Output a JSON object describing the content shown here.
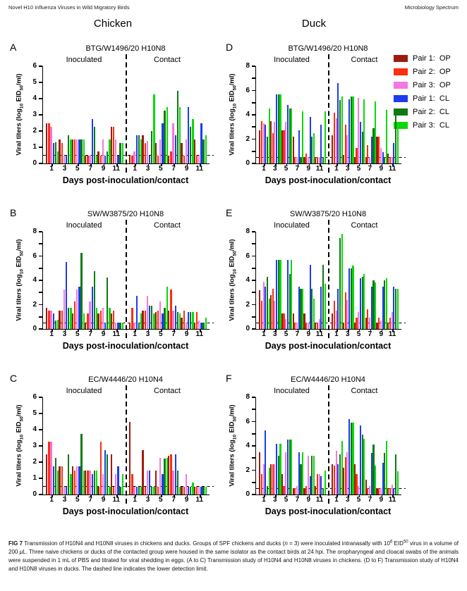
{
  "page": {
    "header_left": "Novel H10 Influenza Viruses in Wild Migratory Birds",
    "header_right": "Microbiology Spectrum",
    "column_titles": {
      "left": "Chicken",
      "right": "Duck"
    }
  },
  "legend": {
    "items": [
      {
        "label": "Pair 1:  OP",
        "color": "#9E1B10"
      },
      {
        "label": "Pair 2:  OP",
        "color": "#FB2E0D"
      },
      {
        "label": "Pair 3:  OP",
        "color": "#F478DE"
      },
      {
        "label": "Pair 1:  CL",
        "color": "#1D3CF2"
      },
      {
        "label": "Pair 2:  CL",
        "color": "#0D7A12"
      },
      {
        "label": "Pair 3:  CL",
        "color": "#0BD80B"
      }
    ]
  },
  "axes": {
    "y_label": {
      "pre": "Viral titers (log",
      "sub1": "10",
      "mid": " EID",
      "sub2": "50",
      "post": "/ml)"
    },
    "x_label": "Days post-inoculation/contact",
    "days": [
      1,
      3,
      5,
      7,
      9,
      11
    ],
    "detection_limit": 0.5
  },
  "chart_data": [
    {
      "type": "bar",
      "letter": "A",
      "title": "BTG/W1496/20 H10N8",
      "animal": "Chicken",
      "ymax": 6,
      "label_every": 1,
      "series": [
        "Pair 1: OP",
        "Pair 2: OP",
        "Pair 3: OP",
        "Pair 1: CL",
        "Pair 2: CL",
        "Pair 3: CL"
      ],
      "sections": [
        {
          "label": "Inoculated",
          "values": [
            [
              2.5,
              2.5,
              2.25,
              1.25,
              1.3,
              0.75
            ],
            [
              1.5,
              1.25,
              0.5,
              0.5,
              1.75,
              1.5
            ],
            [
              1.5,
              1.5,
              1.5,
              1.5,
              1.5,
              1.5
            ],
            [
              0.5,
              0.5,
              0.5,
              2.75,
              2.25,
              0.5
            ],
            [
              0.75,
              0.5,
              1.5,
              0.5,
              0.75,
              1.5
            ],
            [
              2.25,
              2.25,
              1.5,
              0.5,
              1.25,
              1.25
            ]
          ]
        },
        {
          "label": "Contact",
          "values": [
            [
              0.5,
              0.5,
              0.75,
              1.75,
              1.75,
              1.5
            ],
            [
              1.75,
              1.25,
              1.4,
              0.5,
              2.0,
              4.25
            ],
            [
              1.25,
              0.5,
              1.5,
              2.5,
              3.25,
              3.5
            ],
            [
              0.5,
              0.75,
              2.5,
              1.75,
              4.5,
              3.5
            ],
            [
              1.25,
              0.5,
              1.5,
              3.5,
              2.25,
              2.75
            ],
            [
              1.5,
              0.5,
              0.5,
              2.5,
              1.5,
              1.75
            ]
          ]
        }
      ]
    },
    {
      "type": "bar",
      "letter": "B",
      "title": "SW/W3875/20 H10N8",
      "animal": "Chicken",
      "ymax": 8,
      "label_every": 2,
      "series": [
        "Pair 1: OP",
        "Pair 2: OP",
        "Pair 3: OP",
        "Pair 1: CL",
        "Pair 2: CL",
        "Pair 3: CL"
      ],
      "sections": [
        {
          "label": "Inoculated",
          "values": [
            [
              1.75,
              1.5,
              1.5,
              1.25,
              0.7,
              0.75
            ],
            [
              1.5,
              1.5,
              3.25,
              5.5,
              1.75,
              1.75
            ],
            [
              1.25,
              2.25,
              3.25,
              3.5,
              6.25,
              1.25
            ],
            [
              0.5,
              1.25,
              2.25,
              3.5,
              4.75,
              1.75
            ],
            [
              1.25,
              1.5,
              1.75,
              0.5,
              4.25,
              1.75
            ],
            [
              1.25,
              1.5,
              0.5,
              0.5,
              0.5,
              0.5
            ]
          ]
        },
        {
          "label": "Contact",
          "values": [
            [
              0.5,
              1.75,
              0.5,
              2.75,
              0.5,
              1.25
            ],
            [
              1.5,
              1.5,
              2.75,
              1.9,
              1.9,
              1.25
            ],
            [
              1.4,
              1.5,
              2.25,
              1.25,
              1.75,
              3.5
            ],
            [
              1.5,
              3.25,
              1.5,
              1.9,
              1.4,
              1.25
            ],
            [
              0.9,
              1.5,
              0.5,
              1.4,
              1.4,
              1.4
            ],
            [
              0.5,
              1.4,
              0.7,
              0.5,
              0.5,
              0.9
            ]
          ]
        }
      ]
    },
    {
      "type": "bar",
      "letter": "C",
      "title": "EC/W4446/20 H10N4",
      "animal": "Chicken",
      "ymax": 6,
      "label_every": 1,
      "series": [
        "Pair 1: OP",
        "Pair 2: OP",
        "Pair 3: OP",
        "Pair 1: CL",
        "Pair 2: CL",
        "Pair 3: CL"
      ],
      "sections": [
        {
          "label": "Inoculated",
          "values": [
            [
              2.5,
              3.25,
              3.25,
              1.75,
              2.25,
              1.5
            ],
            [
              1.75,
              1.75,
              0.5,
              0.5,
              2.5,
              1.25
            ],
            [
              1.75,
              1.5,
              1.75,
              1.75,
              3.75,
              1.5
            ],
            [
              1.5,
              1.5,
              1.5,
              1.25,
              1.5,
              1.5
            ],
            [
              0.5,
              3.25,
              1.25,
              2.75,
              2.5,
              0.5
            ],
            [
              2.5,
              0.5,
              1.25,
              1.75,
              0.5,
              1.25
            ]
          ]
        },
        {
          "label": "Contact",
          "values": [
            [
              4.5,
              1.25,
              0.5,
              0.5,
              0.5,
              0.5
            ],
            [
              2.75,
              0.5,
              1.5,
              1.5,
              0.5,
              0.5
            ],
            [
              1.5,
              0.5,
              2.25,
              1.25,
              2.2,
              2.25
            ],
            [
              2.4,
              2.5,
              1.5,
              2.5,
              1.5,
              0.5
            ],
            [
              0.5,
              0.5,
              1.25,
              0.5,
              0.5,
              0.75
            ],
            [
              0.5,
              0.5,
              0.5,
              0.5,
              0.5,
              0.5
            ]
          ]
        }
      ]
    },
    {
      "type": "bar",
      "letter": "D",
      "title": "BTG/W1496/20 H10N8",
      "animal": "Duck",
      "ymax": 8,
      "label_every": 2,
      "series": [
        "Pair 1: OP",
        "Pair 2: OP",
        "Pair 3: OP",
        "Pair 1: CL",
        "Pair 2: CL",
        "Pair 3: CL"
      ],
      "sections": [
        {
          "label": "Inoculated",
          "values": [
            [
              2.7,
              3.5,
              3.3,
              3.2,
              2.2,
              4.5
            ],
            [
              3.5,
              2.5,
              3.4,
              5.7,
              5.7,
              5.7
            ],
            [
              2.7,
              2.7,
              3.4,
              4.8,
              4.5,
              4.5
            ],
            [
              2.2,
              0.5,
              0.5,
              2.7,
              0.5,
              4.3
            ],
            [
              0.5,
              0.8,
              0.5,
              3.8,
              2.2,
              2.5
            ],
            [
              0.5,
              0.5,
              0.5,
              3.2,
              0.5,
              4.3
            ]
          ]
        },
        {
          "label": "Contact",
          "values": [
            [
              2.3,
              4.2,
              3.7,
              6.6,
              5.2,
              5.5
            ],
            [
              0.7,
              3.2,
              2.3,
              5.3,
              5.5,
              5.5
            ],
            [
              0.5,
              1.3,
              5.4,
              3.4,
              2.6,
              5.3
            ],
            [
              0.5,
              1.5,
              0.5,
              2.2,
              2.9,
              5.1
            ],
            [
              2.2,
              2.2,
              1.3,
              0.9,
              0.5,
              4.4
            ],
            [
              0.8,
              0.5,
              0.5,
              1.7,
              4.4,
              2.9
            ]
          ]
        }
      ]
    },
    {
      "type": "bar",
      "letter": "E",
      "title": "SW/W3875/20 H10N8",
      "animal": "Duck",
      "ymax": 8,
      "label_every": 2,
      "series": [
        "Pair 1: OP",
        "Pair 2: OP",
        "Pair 3: OP",
        "Pair 1: CL",
        "Pair 2: CL",
        "Pair 3: CL"
      ],
      "sections": [
        {
          "label": "Inoculated",
          "values": [
            [
              3.2,
              2.3,
              3.9,
              3.5,
              4.3,
              2.5
            ],
            [
              2.8,
              3.3,
              2.3,
              5.7,
              5.7,
              5.7
            ],
            [
              1.3,
              1.3,
              0.8,
              5.7,
              4.5,
              5.7
            ],
            [
              1.3,
              0.5,
              0.5,
              3.5,
              3.3,
              3.3
            ],
            [
              1.3,
              0.5,
              0.5,
              5.3,
              3.3,
              2.5
            ],
            [
              0.5,
              0.5,
              0.8,
              3.5,
              5.3,
              3.7
            ]
          ]
        },
        {
          "label": "Contact",
          "values": [
            [
              1.3,
              2.3,
              1.5,
              3.3,
              7.5,
              7.8
            ],
            [
              0.5,
              3.0,
              2.4,
              5.0,
              5.0,
              5.2
            ],
            [
              0.5,
              0.9,
              1.4,
              4.2,
              4.3,
              4.5
            ],
            [
              0.9,
              1.6,
              0.9,
              3.5,
              4.0,
              3.8
            ],
            [
              0.5,
              0.9,
              0.7,
              3.5,
              4.0,
              4.2
            ],
            [
              0.5,
              0.9,
              1.4,
              3.5,
              3.3,
              3.3
            ]
          ]
        }
      ]
    },
    {
      "type": "bar",
      "letter": "F",
      "title": "EC/W4446/20 H10N4",
      "animal": "Duck",
      "ymax": 8,
      "label_every": 2,
      "series": [
        "Pair 1: OP",
        "Pair 2: OP",
        "Pair 3: OP",
        "Pair 1: CL",
        "Pair 2: CL",
        "Pair 3: CL"
      ],
      "sections": [
        {
          "label": "Inoculated",
          "values": [
            [
              3.5,
              1.7,
              2.5,
              5.3,
              0.7,
              2.2
            ],
            [
              2.5,
              2.5,
              2.5,
              4.2,
              3.2,
              4.2
            ],
            [
              1.7,
              0.7,
              3.5,
              4.5,
              4.5,
              4.5
            ],
            [
              0.5,
              0.5,
              0.7,
              3.5,
              2.5,
              3.5
            ],
            [
              0.5,
              0.7,
              3.2,
              1.5,
              3.2,
              3.2
            ],
            [
              0.7,
              1.7,
              1.7,
              1.5,
              0.5,
              2.0
            ]
          ]
        },
        {
          "label": "Contact",
          "values": [
            [
              2.5,
              2.4,
              3.6,
              2.5,
              3.3,
              4.4
            ],
            [
              2.2,
              3.1,
              3.5,
              6.2,
              5.9,
              5.9
            ],
            [
              2.5,
              1.7,
              0.7,
              5.7,
              4.9,
              4.6
            ],
            [
              1.2,
              0.5,
              0.7,
              3.4,
              4.1,
              2.4
            ],
            [
              0.5,
              0.5,
              0.5,
              2.6,
              3.4,
              4.4
            ],
            [
              0.5,
              0.5,
              0.8,
              0.5,
              3.3,
              1.9
            ]
          ]
        }
      ]
    }
  ],
  "caption": {
    "segments": [
      {
        "t": "FIG 7",
        "b": true
      },
      {
        "t": " Transmission of H10N4 and H10N8 viruses in chickens and ducks. Groups of SPF chickens and ducks ("
      },
      {
        "t": "n",
        "i": true
      },
      {
        "t": " = 3) were inoculated intranasally with 10"
      },
      {
        "t": "6",
        "sup": true
      },
      {
        "t": " EID"
      },
      {
        "t": "50",
        "sup": true
      },
      {
        "t": " virus in a volume of 200 "
      },
      {
        "t": "μL",
        "i": true
      },
      {
        "t": ". Three naive chickens or ducks of the contacted group were housed in the same isolator as the contact birds at 24 hpi. The oropharyngeal and cloacal swabs of the animals were suspended in 1 mL of PBS and titrated for viral shedding in eggs. (A to C) Transmission study of H10N4 and H10N8 viruses in chickens. (D to F) Transmission study of H10N4 and H10N8 viruses in ducks. The dashed line indicates the lower detection limit."
      }
    ]
  }
}
